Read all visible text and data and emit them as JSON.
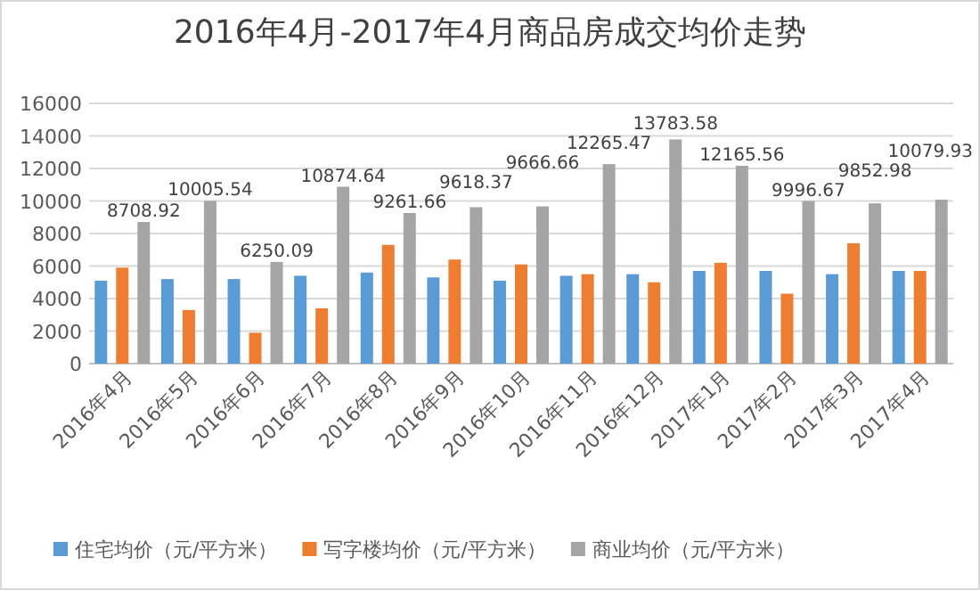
{
  "chart_data": {
    "type": "bar",
    "title": "2016年4月-2017年4月商品房成交均价走势",
    "categories": [
      "2016年4月",
      "2016年5月",
      "2016年6月",
      "2016年7月",
      "2016年8月",
      "2016年9月",
      "2016年10月",
      "2016年11月",
      "2016年12月",
      "2017年1月",
      "2017年2月",
      "2017年3月",
      "2017年4月"
    ],
    "series": [
      {
        "name": "住宅均价（元/平方米）",
        "color": "#5b9bd5",
        "values": [
          5100,
          5200,
          5200,
          5400,
          5600,
          5300,
          5100,
          5400,
          5500,
          5700,
          5700,
          5500,
          5700
        ]
      },
      {
        "name": "写字楼均价（元/平方米）",
        "color": "#ed7d31",
        "values": [
          5900,
          3300,
          1900,
          3400,
          7300,
          6400,
          6100,
          5500,
          5000,
          6200,
          4300,
          7400,
          5700
        ]
      },
      {
        "name": "商业均价（元/平方米）",
        "color": "#a5a5a5",
        "values": [
          8708.92,
          10005.54,
          6250.09,
          10874.64,
          9261.66,
          9618.37,
          9666.66,
          12265.47,
          13783.58,
          12165.56,
          9996.67,
          9852.98,
          10079.93
        ],
        "value_labels": [
          "8708.92",
          "10005.54",
          "6250.09",
          "10874.64",
          "9261.66",
          "9618.37",
          "9666.66",
          "12265.47",
          "13783.58",
          "12165.56",
          "9996.67",
          "9852.98",
          "10079.93"
        ]
      }
    ],
    "ylim": [
      0,
      16000
    ],
    "yticks": [
      0,
      2000,
      4000,
      6000,
      8000,
      10000,
      12000,
      14000,
      16000
    ],
    "grid": "y",
    "legend": "bottom"
  }
}
